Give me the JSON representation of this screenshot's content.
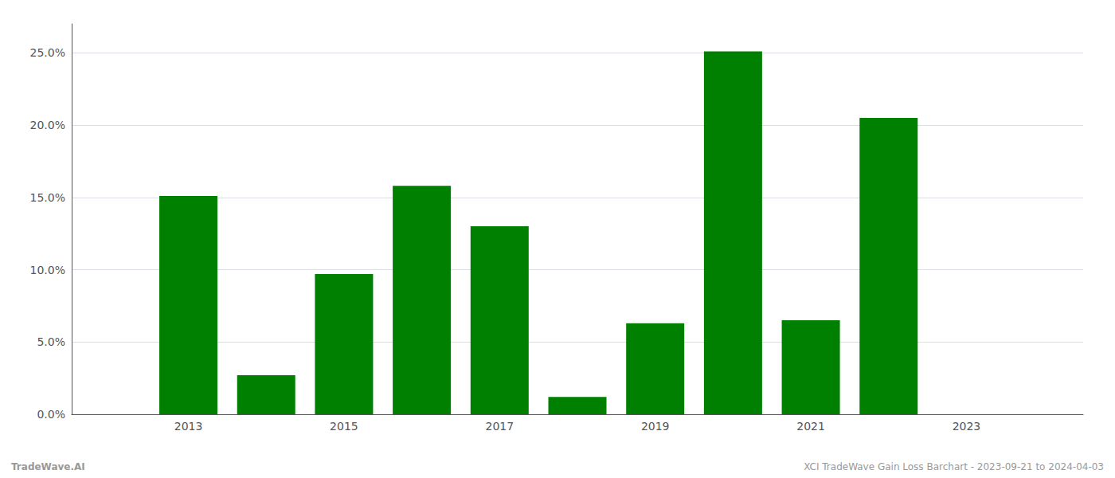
{
  "chart_data": {
    "type": "bar",
    "x": [
      2013,
      2014,
      2015,
      2016,
      2017,
      2018,
      2019,
      2020,
      2021,
      2022
    ],
    "values": [
      0.151,
      0.027,
      0.097,
      0.158,
      0.13,
      0.012,
      0.063,
      0.251,
      0.065,
      0.205
    ],
    "color": "#008000",
    "xlim": [
      2011.5,
      2024.5
    ],
    "xticks": [
      2013,
      2015,
      2017,
      2019,
      2021,
      2023
    ],
    "ylim": [
      0,
      0.27
    ],
    "yticks": [
      {
        "value": 0.0,
        "label": "0.0%"
      },
      {
        "value": 0.05,
        "label": "5.0%"
      },
      {
        "value": 0.1,
        "label": "10.0%"
      },
      {
        "value": 0.15,
        "label": "15.0%"
      },
      {
        "value": 0.2,
        "label": "20.0%"
      },
      {
        "value": 0.25,
        "label": "25.0%"
      }
    ],
    "grid": true,
    "annotations": [
      "TradeWave.AI",
      "XCI TradeWave Gain Loss Barchart - 2023-09-21 to 2024-04-03"
    ]
  }
}
